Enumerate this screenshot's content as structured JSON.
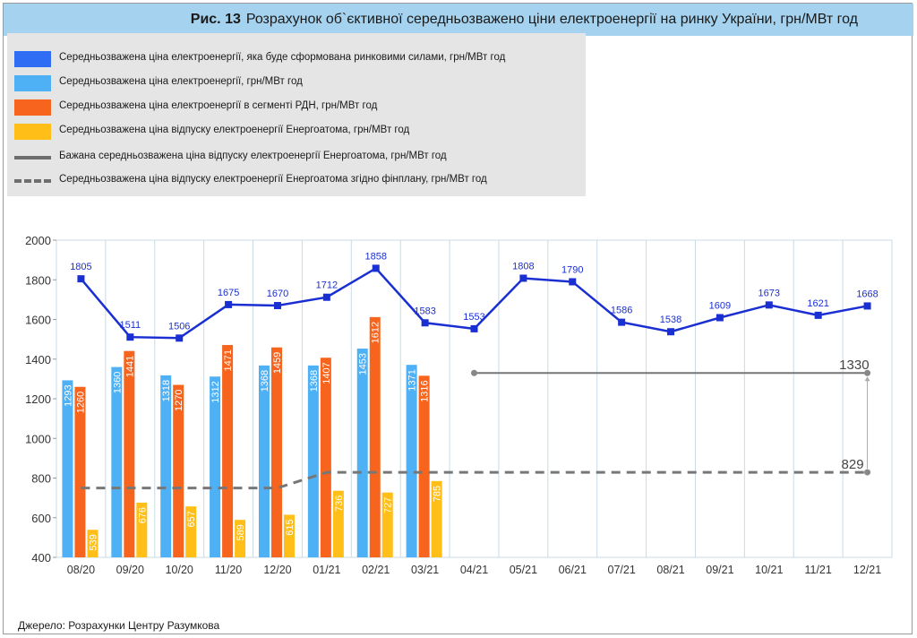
{
  "title": {
    "fig": "Рис. 13",
    "text": "Розрахунок об`єктивної середньозважено ціни електроенергії на ринку України, грн/МВт год"
  },
  "source": "Джерело: Розрахунки Центру Разумкова",
  "colors": {
    "market_line": "#1a2fd2",
    "avg_bar": "#4fb1f5",
    "rdn_bar": "#f7641d",
    "energoatom_bar": "#ffbf18",
    "ref_line": "#888888",
    "legend_market": "#2e6df4"
  },
  "legend": [
    {
      "type": "swatch",
      "color_key": "legend_market",
      "label": "Середньозважена ціна електроенергії, яка буде сформована ринковими силами, грн/МВт год"
    },
    {
      "type": "swatch",
      "color_key": "avg_bar",
      "label": "Середньозважена ціна електроенергії,  грн/МВт год"
    },
    {
      "type": "swatch",
      "color_key": "rdn_bar",
      "label": "Середньозважена ціна електроенергії в сегменті РДН, грн/МВт год"
    },
    {
      "type": "swatch",
      "color_key": "energoatom_bar",
      "label": "Середньозважена ціна відпуску електроенергії Енергоатома, грн/МВт год"
    },
    {
      "type": "line",
      "label": "Бажана середньозважена ціна відпуску електроенергії Енергоатома, грн/МВт год"
    },
    {
      "type": "dash",
      "label": "Середньозважена ціна відпуску електроенергії Енергоатома згідно фінплану, грн/МВт год"
    }
  ],
  "chart_data": {
    "type": "bar",
    "categories": [
      "08/20",
      "09/20",
      "10/20",
      "11/20",
      "12/20",
      "01/21",
      "02/21",
      "03/21",
      "04/21",
      "05/21",
      "06/21",
      "07/21",
      "08/21",
      "09/21",
      "10/21",
      "11/21",
      "12/21"
    ],
    "ylim": [
      400,
      2000
    ],
    "yticks": [
      400,
      600,
      800,
      1000,
      1200,
      1400,
      1600,
      1800,
      2000
    ],
    "grid": true,
    "bar_series": [
      {
        "key": "avg",
        "color_key": "avg_bar",
        "values": [
          1293,
          1360,
          1318,
          1312,
          1368,
          1368,
          1453,
          1371
        ]
      },
      {
        "key": "rdn",
        "color_key": "rdn_bar",
        "values": [
          1260,
          1441,
          1270,
          1471,
          1459,
          1407,
          1612,
          1316
        ]
      },
      {
        "key": "energoatom",
        "color_key": "energoatom_bar",
        "values": [
          539,
          676,
          657,
          589,
          615,
          736,
          727,
          785
        ]
      }
    ],
    "line_series": {
      "key": "market",
      "color_key": "market_line",
      "values": [
        1805,
        1511,
        1506,
        1675,
        1670,
        1712,
        1858,
        1583,
        1553,
        1808,
        1790,
        1586,
        1538,
        1609,
        1673,
        1621,
        1668
      ]
    },
    "desired_line": {
      "value": 1330,
      "label": "1330",
      "from_index": 8,
      "to_index": 16
    },
    "finplan_line": {
      "points": [
        [
          0,
          750
        ],
        [
          4,
          750
        ],
        [
          5,
          829
        ],
        [
          16,
          829
        ]
      ],
      "label": "829"
    }
  }
}
